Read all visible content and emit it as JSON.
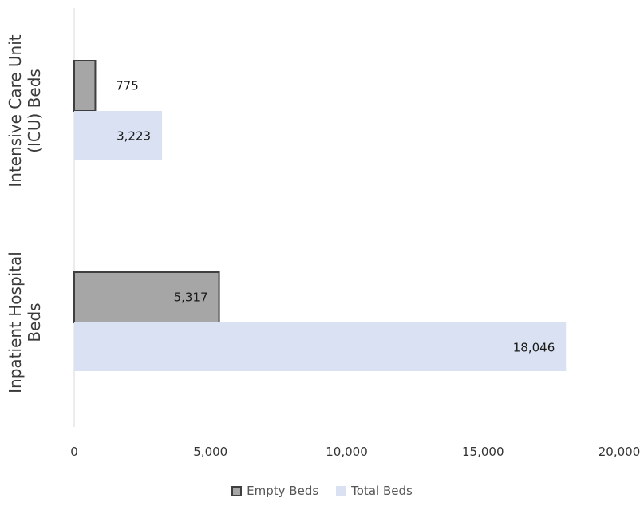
{
  "chart_data": {
    "type": "bar",
    "orientation": "horizontal",
    "categories": [
      "Intensive Care Unit (ICU) Beds",
      "Inpatient Hospital Beds"
    ],
    "category_lines": [
      [
        "Intensive Care Unit",
        "(ICU) Beds"
      ],
      [
        "Inpatient Hospital",
        "Beds"
      ]
    ],
    "series": [
      {
        "name": "Empty Beds",
        "values": [
          775,
          5317
        ],
        "color": "#a6a6a6",
        "border": "#3f3f3f"
      },
      {
        "name": "Total Beds",
        "values": [
          3223,
          18046
        ],
        "color": "#d9e1f2",
        "border": "none"
      }
    ],
    "data_labels": [
      [
        "775",
        "5,317"
      ],
      [
        "3,223",
        "18,046"
      ]
    ],
    "xlim": [
      0,
      20000
    ],
    "x_ticks": [
      0,
      5000,
      10000,
      15000,
      20000
    ],
    "x_tick_labels": [
      "0",
      "5,000",
      "10,000",
      "15,000",
      "20,000"
    ],
    "grid": false,
    "legend_position": "bottom",
    "title": "",
    "xlabel": "",
    "ylabel": ""
  }
}
